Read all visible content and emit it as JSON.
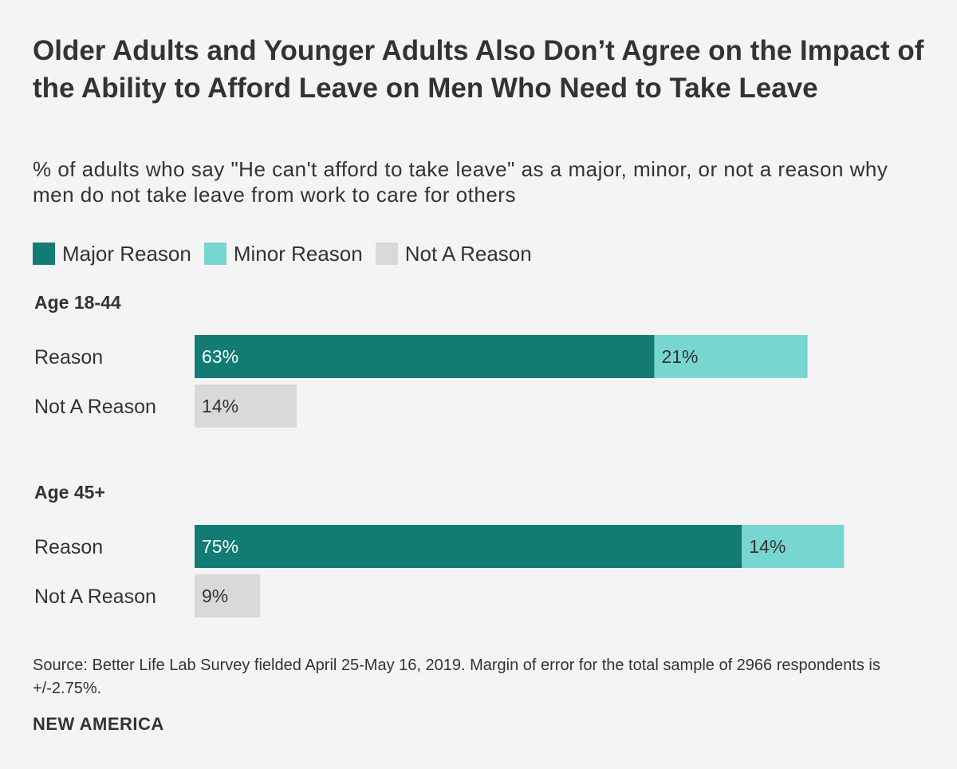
{
  "chart_data": {
    "type": "bar",
    "orientation": "horizontal",
    "stacked": true,
    "title": "Older Adults and Younger Adults Also Don’t Agree on the Impact of the Ability to Afford Leave on Men Who Need to Take Leave",
    "subtitle": "% of adults who say \"He can't afford to take leave\" as a major, minor, or not a reason why men do not take leave from work to care for others",
    "legend": [
      {
        "name": "Major Reason",
        "color": "#127c74"
      },
      {
        "name": "Minor Reason",
        "color": "#78d6d0"
      },
      {
        "name": "Not A Reason",
        "color": "#d9d9d9"
      }
    ],
    "xlim": [
      0,
      100
    ],
    "groups": [
      {
        "title": "Age 18-44",
        "rows": [
          {
            "label": "Reason",
            "segments": [
              {
                "series": "Major Reason",
                "value": 63,
                "label": "63%"
              },
              {
                "series": "Minor Reason",
                "value": 21,
                "label": "21%"
              }
            ]
          },
          {
            "label": "Not A Reason",
            "segments": [
              {
                "series": "Not A Reason",
                "value": 14,
                "label": "14%"
              }
            ]
          }
        ]
      },
      {
        "title": "Age 45+",
        "rows": [
          {
            "label": "Reason",
            "segments": [
              {
                "series": "Major Reason",
                "value": 75,
                "label": "75%"
              },
              {
                "series": "Minor Reason",
                "value": 14,
                "label": "14%"
              }
            ]
          },
          {
            "label": "Not A Reason",
            "segments": [
              {
                "series": "Not A Reason",
                "value": 9,
                "label": "9%"
              }
            ]
          }
        ]
      }
    ]
  },
  "footer": {
    "source": "Source: Better Life Lab Survey fielded April 25-May 16, 2019. Margin of error for the total sample of 2966 respondents is +/-2.75%.",
    "brand": "NEW AMERICA"
  }
}
